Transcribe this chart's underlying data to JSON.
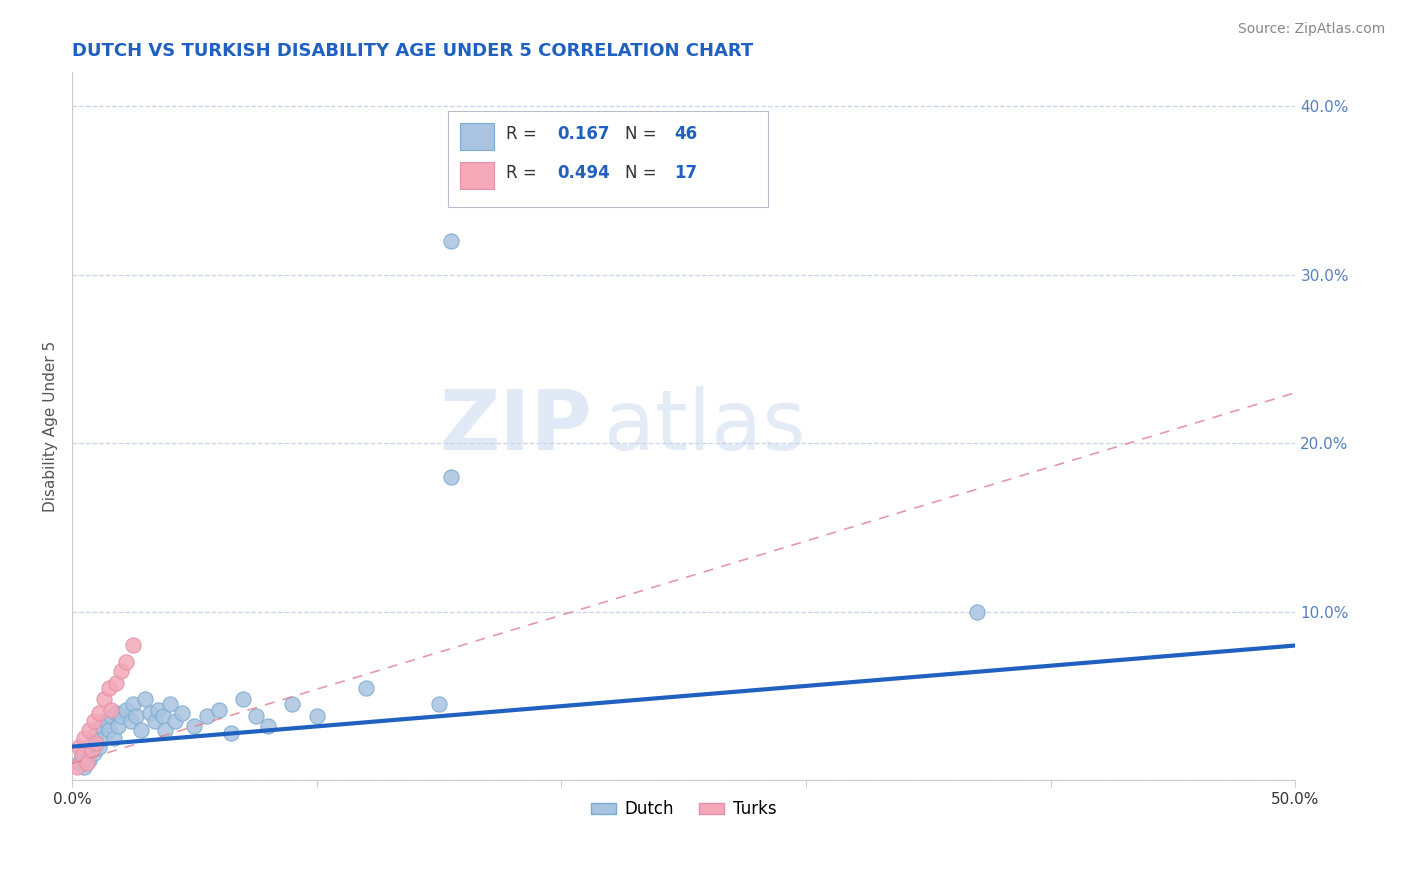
{
  "title": "DUTCH VS TURKISH DISABILITY AGE UNDER 5 CORRELATION CHART",
  "source": "Source: ZipAtlas.com",
  "ylabel": "Disability Age Under 5",
  "xlim": [
    0.0,
    0.5
  ],
  "ylim": [
    0.0,
    0.42
  ],
  "yticks": [
    0.0,
    0.1,
    0.2,
    0.3,
    0.4
  ],
  "ytick_labels": [
    "",
    "10.0%",
    "20.0%",
    "30.0%",
    "40.0%"
  ],
  "xticks": [
    0.0,
    0.1,
    0.2,
    0.3,
    0.4,
    0.5
  ],
  "xtick_labels": [
    "0.0%",
    "",
    "",
    "",
    "",
    "50.0%"
  ],
  "dutch_R": 0.167,
  "dutch_N": 46,
  "turks_R": 0.494,
  "turks_N": 17,
  "dutch_color": "#a8c4e0",
  "turks_color": "#f4a8b8",
  "dutch_line_color": "#2060c0",
  "turks_line_color": "#e08090",
  "background_color": "#ffffff",
  "grid_color": "#c8d4e8",
  "title_color": "#2060c0",
  "watermark_zip": "ZIP",
  "watermark_atlas": "atlas",
  "dutch_points": [
    [
      0.003,
      0.01
    ],
    [
      0.004,
      0.015
    ],
    [
      0.005,
      0.008
    ],
    [
      0.006,
      0.018
    ],
    [
      0.007,
      0.012
    ],
    [
      0.008,
      0.022
    ],
    [
      0.009,
      0.016
    ],
    [
      0.01,
      0.028
    ],
    [
      0.011,
      0.02
    ],
    [
      0.012,
      0.032
    ],
    [
      0.013,
      0.025
    ],
    [
      0.014,
      0.035
    ],
    [
      0.015,
      0.03
    ],
    [
      0.016,
      0.038
    ],
    [
      0.017,
      0.025
    ],
    [
      0.018,
      0.04
    ],
    [
      0.019,
      0.032
    ],
    [
      0.02,
      0.038
    ],
    [
      0.022,
      0.042
    ],
    [
      0.024,
      0.035
    ],
    [
      0.025,
      0.045
    ],
    [
      0.026,
      0.038
    ],
    [
      0.028,
      0.03
    ],
    [
      0.03,
      0.048
    ],
    [
      0.032,
      0.04
    ],
    [
      0.034,
      0.035
    ],
    [
      0.035,
      0.042
    ],
    [
      0.037,
      0.038
    ],
    [
      0.038,
      0.03
    ],
    [
      0.04,
      0.045
    ],
    [
      0.042,
      0.035
    ],
    [
      0.045,
      0.04
    ],
    [
      0.05,
      0.032
    ],
    [
      0.055,
      0.038
    ],
    [
      0.06,
      0.042
    ],
    [
      0.065,
      0.028
    ],
    [
      0.07,
      0.048
    ],
    [
      0.075,
      0.038
    ],
    [
      0.08,
      0.032
    ],
    [
      0.09,
      0.045
    ],
    [
      0.1,
      0.038
    ],
    [
      0.12,
      0.055
    ],
    [
      0.15,
      0.045
    ],
    [
      0.37,
      0.1
    ],
    [
      0.155,
      0.32
    ],
    [
      0.155,
      0.18
    ]
  ],
  "turks_points": [
    [
      0.002,
      0.008
    ],
    [
      0.003,
      0.02
    ],
    [
      0.004,
      0.015
    ],
    [
      0.005,
      0.025
    ],
    [
      0.006,
      0.01
    ],
    [
      0.007,
      0.03
    ],
    [
      0.008,
      0.018
    ],
    [
      0.009,
      0.035
    ],
    [
      0.01,
      0.022
    ],
    [
      0.011,
      0.04
    ],
    [
      0.013,
      0.048
    ],
    [
      0.015,
      0.055
    ],
    [
      0.016,
      0.042
    ],
    [
      0.018,
      0.058
    ],
    [
      0.02,
      0.065
    ],
    [
      0.022,
      0.07
    ],
    [
      0.025,
      0.08
    ]
  ],
  "dutch_trend": [
    0.0,
    0.5,
    0.02,
    0.08
  ],
  "turks_trend": [
    0.0,
    0.5,
    0.01,
    0.23
  ],
  "legend_R1": "R = ",
  "legend_R1_val": "0.167",
  "legend_N1": "  N = ",
  "legend_N1_val": "46",
  "legend_R2": "R = ",
  "legend_R2_val": "0.494",
  "legend_N2": "  N = ",
  "legend_N2_val": "17"
}
